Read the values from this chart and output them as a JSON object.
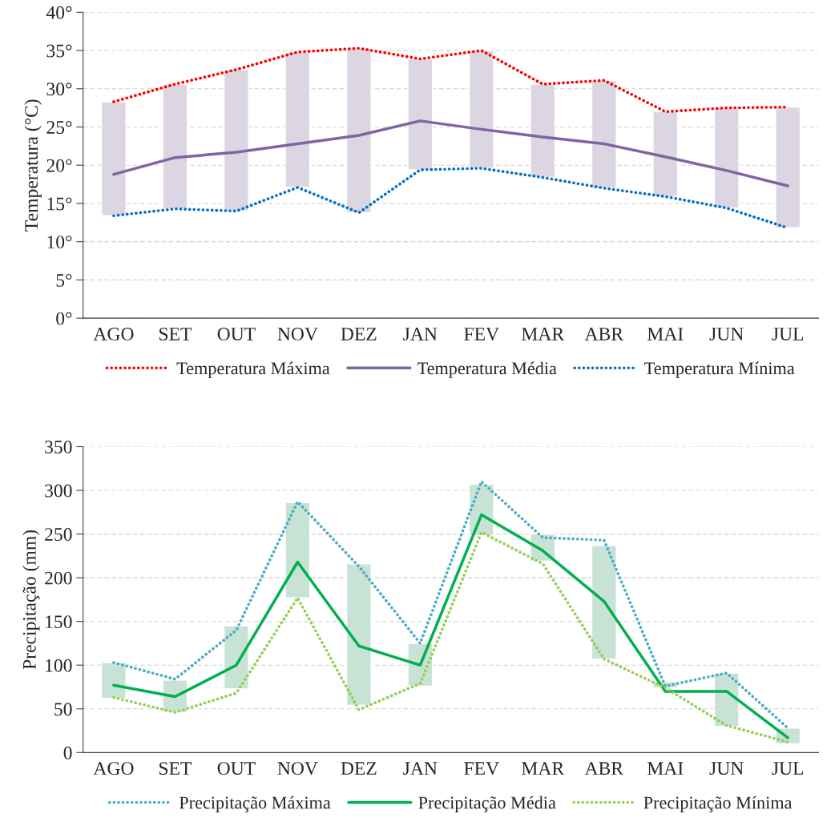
{
  "chart_data": [
    {
      "type": "line",
      "ylabel": "Temperatura (°C)",
      "categories": [
        "AGO",
        "SET",
        "OUT",
        "NOV",
        "DEZ",
        "JAN",
        "FEV",
        "MAR",
        "ABR",
        "MAI",
        "JUN",
        "JUL"
      ],
      "ylim": [
        0,
        40
      ],
      "yticks": [
        {
          "value": 0,
          "label": "0°"
        },
        {
          "value": 5,
          "label": "5°"
        },
        {
          "value": 10,
          "label": "10°"
        },
        {
          "value": 15,
          "label": "15°"
        },
        {
          "value": 20,
          "label": "20°"
        },
        {
          "value": 25,
          "label": "25°"
        },
        {
          "value": 30,
          "label": "30°"
        },
        {
          "value": 35,
          "label": "35°"
        },
        {
          "value": 40,
          "label": "40°"
        }
      ],
      "grid": "y",
      "legend": "bottom",
      "series": [
        {
          "type": "bar",
          "color": "#dcd6e3",
          "base": [
            13.4,
            14.3,
            14.0,
            17.1,
            13.8,
            19.4,
            19.6,
            18.4,
            17.0,
            15.9,
            14.4,
            11.8
          ],
          "values": [
            14.9,
            16.3,
            18.5,
            17.7,
            21.5,
            14.5,
            15.4,
            12.2,
            14.1,
            11.1,
            13.1,
            15.8
          ]
        },
        {
          "name": "Temperatura Máxima",
          "color": "#ff0000",
          "line_style": "dotted",
          "values": [
            28.3,
            30.6,
            32.5,
            34.8,
            35.3,
            33.9,
            35.0,
            30.6,
            31.1,
            27.0,
            27.5,
            27.6
          ]
        },
        {
          "name": "Temperatura Média",
          "color": "#8064a2",
          "line_style": "solid",
          "values": [
            18.8,
            21.0,
            21.7,
            22.8,
            23.9,
            25.8,
            24.7,
            23.7,
            22.8,
            21.1,
            19.3,
            17.3
          ]
        },
        {
          "name": "Temperatura Mínima",
          "color": "#0070c0",
          "line_style": "dotted",
          "values": [
            13.4,
            14.3,
            14.0,
            17.1,
            13.8,
            19.4,
            19.6,
            18.4,
            17.0,
            15.9,
            14.4,
            11.8
          ]
        }
      ]
    },
    {
      "type": "line",
      "ylabel": "Precipitação (mm)",
      "categories": [
        "AGO",
        "SET",
        "OUT",
        "NOV",
        "DEZ",
        "JAN",
        "FEV",
        "MAR",
        "ABR",
        "MAI",
        "JUN",
        "JUL"
      ],
      "ylim": [
        0,
        350
      ],
      "yticks": [
        0,
        50,
        100,
        150,
        200,
        250,
        300,
        350
      ],
      "grid": "y",
      "legend": "bottom",
      "series": [
        {
          "type": "bar",
          "color": "#c8e2d6",
          "base": [
            62,
            46,
            73,
            177,
            54,
            76,
            248,
            219,
            107,
            74,
            30,
            10
          ],
          "values": [
            41,
            37,
            72,
            109,
            162,
            49,
            59,
            31,
            130,
            7,
            61,
            18
          ]
        },
        {
          "name": "Precipitação Máxima",
          "color": "#4bacc6",
          "line_style": "dotted",
          "values": [
            103,
            84,
            140,
            287,
            213,
            125,
            310,
            246,
            243,
            76,
            91,
            28
          ]
        },
        {
          "name": "Precipitação Média",
          "color": "#00b050",
          "line_style": "solid",
          "values": [
            77,
            64,
            100,
            218,
            122,
            100,
            272,
            231,
            173,
            70,
            70,
            17
          ]
        },
        {
          "name": "Precipitação Mínima",
          "color": "#92d050",
          "line_style": "dotted",
          "values": [
            63,
            46,
            68,
            177,
            49,
            79,
            252,
            216,
            107,
            74,
            31,
            12
          ]
        }
      ]
    }
  ]
}
